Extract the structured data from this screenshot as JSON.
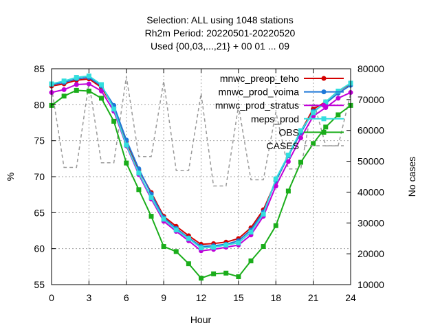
{
  "title_lines": [
    "Selection: ALL using  1048 stations",
    "Rh2m   Period: 20220501-20220520",
    "Used {00,03,...,21} + 00 01 ... 09"
  ],
  "chart_data": {
    "type": "line",
    "xlabel": "Hour",
    "ylabel": "%",
    "y2label": "No cases",
    "xlim": [
      0,
      24
    ],
    "ylim": [
      55,
      85
    ],
    "y2lim": [
      10000,
      80000
    ],
    "xticks": [
      0,
      3,
      6,
      9,
      12,
      15,
      18,
      21,
      24
    ],
    "yticks": [
      55,
      60,
      65,
      70,
      75,
      80,
      85
    ],
    "y2ticks": [
      10000,
      20000,
      30000,
      40000,
      50000,
      60000,
      70000,
      80000
    ],
    "grid": true,
    "legend_position": "top-right",
    "x": [
      0,
      1,
      2,
      3,
      4,
      5,
      6,
      7,
      8,
      9,
      10,
      11,
      12,
      13,
      14,
      15,
      16,
      17,
      18,
      19,
      20,
      21,
      22,
      23,
      24
    ],
    "series": [
      {
        "name": "mnwc_preop_teho",
        "color": "#d40000",
        "marker": "circle",
        "axis": "y",
        "values": [
          82.6,
          82.9,
          83.4,
          83.6,
          82.4,
          79.6,
          74.9,
          70.9,
          67.8,
          64.5,
          63.1,
          61.8,
          60.6,
          60.7,
          60.9,
          61.4,
          62.9,
          65.4,
          69.4,
          72.9,
          76.3,
          79.4,
          80.4,
          81.9,
          82.9
        ]
      },
      {
        "name": "mnwc_prod_voima",
        "color": "#1f78d8",
        "marker": "circle",
        "axis": "y",
        "values": [
          82.8,
          83.1,
          83.6,
          83.8,
          82.6,
          79.9,
          75.1,
          71.1,
          67.6,
          64.3,
          62.8,
          61.5,
          60.3,
          60.4,
          60.6,
          61.1,
          62.6,
          65.1,
          69.4,
          72.9,
          76.1,
          79.1,
          80.2,
          81.6,
          82.7
        ]
      },
      {
        "name": "mnwc_prod_stratus",
        "color": "#c000d8",
        "marker": "circle",
        "axis": "y",
        "values": [
          81.7,
          82.1,
          82.8,
          82.9,
          81.9,
          79.1,
          74.3,
          70.3,
          66.9,
          63.8,
          62.4,
          61.1,
          59.7,
          59.9,
          60.2,
          60.5,
          61.9,
          64.5,
          68.7,
          72.1,
          75.4,
          78.4,
          79.6,
          80.9,
          81.7
        ]
      },
      {
        "name": "meps_prod",
        "color": "#33dede",
        "marker": "square",
        "axis": "y",
        "values": [
          82.9,
          83.3,
          83.8,
          84.0,
          82.8,
          79.4,
          74.4,
          70.5,
          67.1,
          64.1,
          62.6,
          61.4,
          60.1,
          60.2,
          60.5,
          60.8,
          62.3,
          64.8,
          69.7,
          73.0,
          76.4,
          78.9,
          80.4,
          81.9,
          83.0
        ]
      },
      {
        "name": "OBS",
        "color": "#1aad1a",
        "marker": "square",
        "axis": "y",
        "values": [
          79.9,
          81.2,
          82.0,
          81.9,
          80.9,
          77.7,
          71.9,
          68.2,
          64.5,
          60.3,
          59.6,
          57.9,
          55.9,
          56.5,
          56.6,
          56.1,
          58.3,
          60.3,
          63.2,
          68.0,
          72.0,
          74.6,
          76.9,
          78.6,
          79.9
        ]
      },
      {
        "name": "CASES",
        "color": "#999999",
        "marker": "none",
        "dashed": true,
        "axis": "y2",
        "values": [
          74000,
          48000,
          48000,
          75500,
          49500,
          49500,
          77500,
          51500,
          51500,
          76000,
          47000,
          47000,
          72000,
          42000,
          42000,
          68000,
          44000,
          44000,
          66000,
          47500,
          47500,
          70000,
          55000,
          55000,
          72000
        ]
      }
    ]
  }
}
